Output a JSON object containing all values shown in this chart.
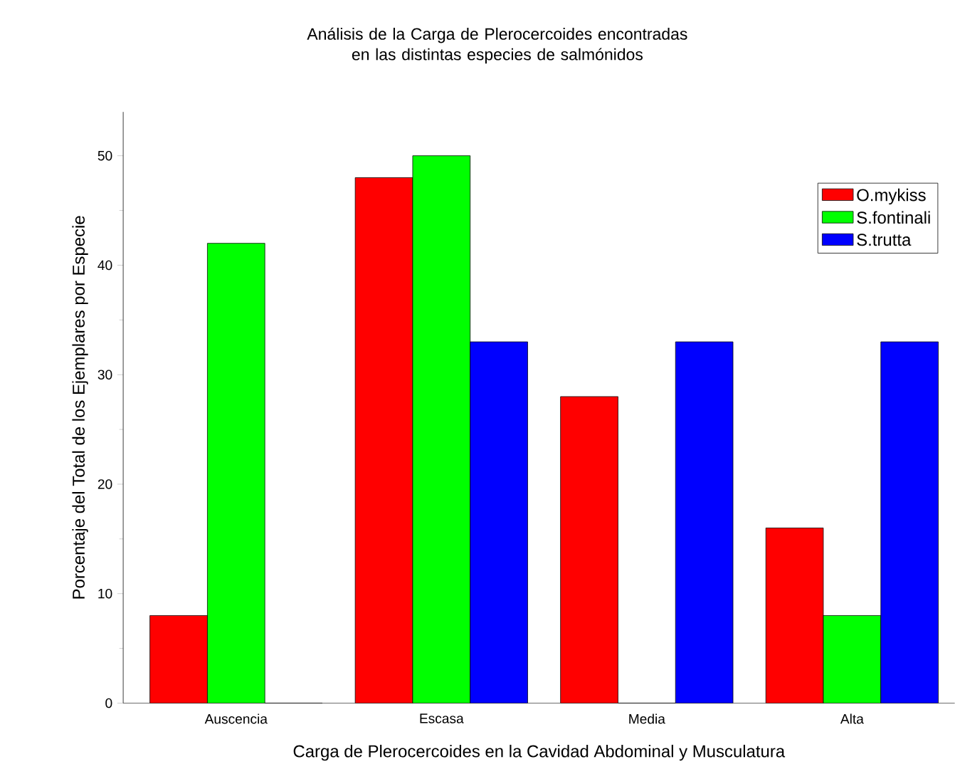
{
  "chart_data": {
    "type": "bar",
    "title": "Análisis de la Carga de Plerocercoides encontradas en las distintas especies de salmónidos",
    "xlabel": "Carga de Plerocercoides en la Cavidad Abdominal y Musculatura",
    "ylabel": "Porcentaje del Total de los Ejemplares por Especie",
    "categories": [
      "Auscencia",
      "Escasa",
      "Media",
      "Alta"
    ],
    "series": [
      {
        "name": "O.mykiss",
        "color": "#ff0000",
        "values": [
          8,
          48,
          28,
          16
        ]
      },
      {
        "name": "S.fontinali",
        "color": "#00ff00",
        "values": [
          42,
          50,
          0,
          8
        ]
      },
      {
        "name": "S.trutta",
        "color": "#0000ff",
        "values": [
          0,
          33,
          33,
          33
        ]
      }
    ],
    "ylim": [
      0,
      54
    ],
    "yticks": [
      0,
      10,
      20,
      30,
      40,
      50
    ],
    "legend": "top right"
  }
}
